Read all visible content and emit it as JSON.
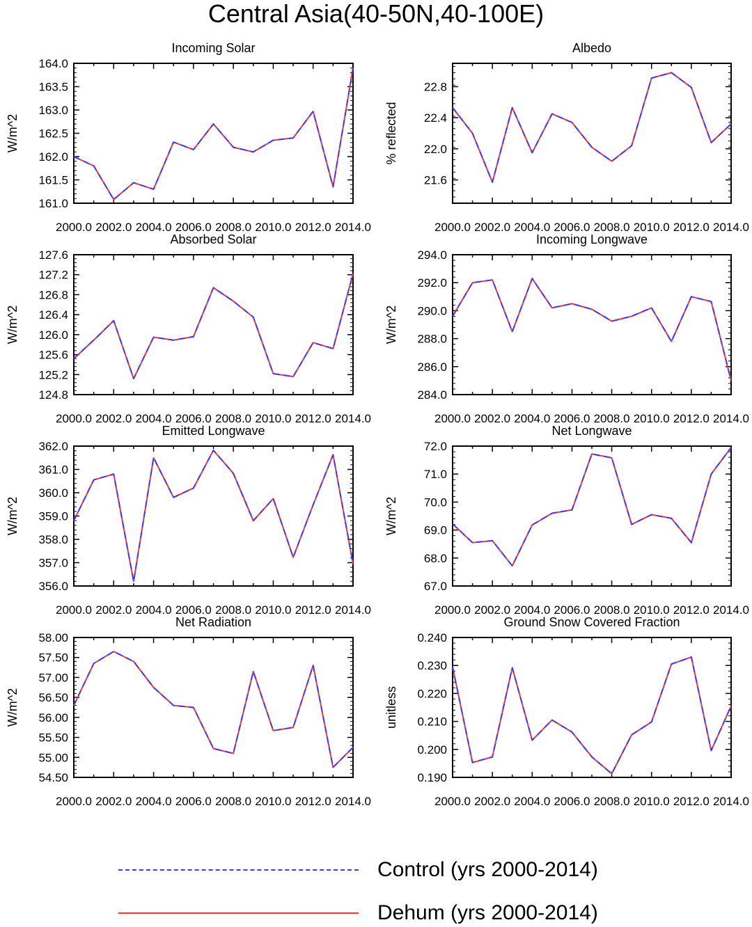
{
  "title": "Central Asia(40-50N,40-100E)",
  "colors": {
    "control": "#3b3bff",
    "dehum": "#ff3333"
  },
  "legend": {
    "control_label": "Control (yrs 2000-2014)",
    "dehum_label": "Dehum (yrs 2000-2014)"
  },
  "chart_data": [
    {
      "type": "line",
      "title": "Incoming Solar",
      "ylabel": "W/m^2",
      "xlabel": "",
      "x": [
        2000,
        2001,
        2002,
        2003,
        2004,
        2005,
        2006,
        2007,
        2008,
        2009,
        2010,
        2011,
        2012,
        2013,
        2014
      ],
      "xlim": [
        2000,
        2014
      ],
      "xticks": [
        "2000.0",
        "2002.0",
        "2004.0",
        "2006.0",
        "2008.0",
        "2010.0",
        "2012.0",
        "2014.0"
      ],
      "ylim": [
        161.0,
        164.0
      ],
      "yticks": [
        "161.0",
        "161.5",
        "162.0",
        "162.5",
        "163.0",
        "163.5",
        "164.0"
      ],
      "series": [
        {
          "name": "Control (yrs 2000-2014)",
          "values": [
            162.0,
            161.8,
            161.08,
            161.44,
            161.3,
            162.31,
            162.15,
            162.7,
            162.2,
            162.1,
            162.35,
            162.4,
            162.97,
            161.35,
            163.9
          ]
        },
        {
          "name": "Dehum (yrs 2000-2014)",
          "values": [
            162.0,
            161.8,
            161.08,
            161.44,
            161.3,
            162.31,
            162.15,
            162.7,
            162.2,
            162.1,
            162.35,
            162.4,
            162.97,
            161.35,
            163.9
          ]
        }
      ]
    },
    {
      "type": "line",
      "title": "Albedo",
      "ylabel": "% reflected",
      "xlabel": "",
      "x": [
        2000,
        2001,
        2002,
        2003,
        2004,
        2005,
        2006,
        2007,
        2008,
        2009,
        2010,
        2011,
        2012,
        2013,
        2014
      ],
      "xlim": [
        2000,
        2014
      ],
      "xticks": [
        "2000.0",
        "2002.0",
        "2004.0",
        "2006.0",
        "2008.0",
        "2010.0",
        "2012.0",
        "2014.0"
      ],
      "ylim": [
        21.3,
        23.1
      ],
      "yticks": [
        "21.6",
        "22.0",
        "22.4",
        "22.8"
      ],
      "series": [
        {
          "name": "Control (yrs 2000-2014)",
          "values": [
            22.53,
            22.2,
            21.57,
            22.53,
            21.95,
            22.45,
            22.34,
            22.02,
            21.84,
            22.04,
            22.91,
            22.98,
            22.79,
            22.08,
            22.32
          ]
        },
        {
          "name": "Dehum (yrs 2000-2014)",
          "values": [
            22.53,
            22.2,
            21.57,
            22.53,
            21.95,
            22.45,
            22.34,
            22.02,
            21.84,
            22.04,
            22.91,
            22.98,
            22.79,
            22.08,
            22.32
          ]
        }
      ]
    },
    {
      "type": "line",
      "title": "Absorbed Solar",
      "ylabel": "W/m^2",
      "xlabel": "",
      "x": [
        2000,
        2001,
        2002,
        2003,
        2004,
        2005,
        2006,
        2007,
        2008,
        2009,
        2010,
        2011,
        2012,
        2013,
        2014
      ],
      "xlim": [
        2000,
        2014
      ],
      "xticks": [
        "2000.0",
        "2002.0",
        "2004.0",
        "2006.0",
        "2008.0",
        "2010.0",
        "2012.0",
        "2014.0"
      ],
      "ylim": [
        124.8,
        127.6
      ],
      "yticks": [
        "124.8",
        "125.2",
        "125.6",
        "126.0",
        "126.4",
        "126.8",
        "127.2",
        "127.6"
      ],
      "series": [
        {
          "name": "Control (yrs 2000-2014)",
          "values": [
            125.52,
            125.89,
            126.28,
            125.12,
            125.95,
            125.89,
            125.96,
            126.94,
            126.67,
            126.35,
            125.22,
            125.16,
            125.84,
            125.72,
            127.22
          ]
        },
        {
          "name": "Dehum (yrs 2000-2014)",
          "values": [
            125.52,
            125.89,
            126.28,
            125.12,
            125.95,
            125.89,
            125.96,
            126.94,
            126.67,
            126.35,
            125.22,
            125.16,
            125.84,
            125.72,
            127.22
          ]
        }
      ]
    },
    {
      "type": "line",
      "title": "Incoming Longwave",
      "ylabel": "W/m^2",
      "xlabel": "",
      "x": [
        2000,
        2001,
        2002,
        2003,
        2004,
        2005,
        2006,
        2007,
        2008,
        2009,
        2010,
        2011,
        2012,
        2013,
        2014
      ],
      "xlim": [
        2000,
        2014
      ],
      "xticks": [
        "2000.0",
        "2002.0",
        "2004.0",
        "2006.0",
        "2008.0",
        "2010.0",
        "2012.0",
        "2014.0"
      ],
      "ylim": [
        284.0,
        294.0
      ],
      "yticks": [
        "284.0",
        "286.0",
        "288.0",
        "290.0",
        "292.0",
        "294.0"
      ],
      "series": [
        {
          "name": "Control (yrs 2000-2014)",
          "values": [
            289.6,
            292.0,
            292.2,
            288.5,
            292.3,
            290.2,
            290.5,
            290.1,
            289.25,
            289.6,
            290.2,
            287.8,
            291.0,
            290.65,
            285.0
          ]
        },
        {
          "name": "Dehum (yrs 2000-2014)",
          "values": [
            289.6,
            292.0,
            292.2,
            288.5,
            292.3,
            290.2,
            290.5,
            290.1,
            289.25,
            289.6,
            290.2,
            287.8,
            291.0,
            290.65,
            285.0
          ]
        }
      ]
    },
    {
      "type": "line",
      "title": "Emitted Longwave",
      "ylabel": "W/m^2",
      "xlabel": "",
      "x": [
        2000,
        2001,
        2002,
        2003,
        2004,
        2005,
        2006,
        2007,
        2008,
        2009,
        2010,
        2011,
        2012,
        2013,
        2014
      ],
      "xlim": [
        2000,
        2014
      ],
      "xticks": [
        "2000.0",
        "2002.0",
        "2004.0",
        "2006.0",
        "2008.0",
        "2010.0",
        "2012.0",
        "2014.0"
      ],
      "ylim": [
        356.0,
        362.0
      ],
      "yticks": [
        "356.0",
        "357.0",
        "358.0",
        "359.0",
        "360.0",
        "361.0",
        "362.0"
      ],
      "series": [
        {
          "name": "Control (yrs 2000-2014)",
          "values": [
            358.8,
            360.55,
            360.8,
            356.2,
            361.5,
            359.8,
            360.2,
            361.82,
            360.83,
            358.8,
            359.75,
            357.23,
            359.48,
            361.63,
            356.95
          ]
        },
        {
          "name": "Dehum (yrs 2000-2014)",
          "values": [
            358.8,
            360.55,
            360.8,
            356.2,
            361.5,
            359.8,
            360.2,
            361.82,
            360.83,
            358.8,
            359.75,
            357.23,
            359.48,
            361.63,
            356.95
          ]
        }
      ]
    },
    {
      "type": "line",
      "title": "Net Longwave",
      "ylabel": "W/m^2",
      "xlabel": "",
      "x": [
        2000,
        2001,
        2002,
        2003,
        2004,
        2005,
        2006,
        2007,
        2008,
        2009,
        2010,
        2011,
        2012,
        2013,
        2014
      ],
      "xlim": [
        2000,
        2014
      ],
      "xticks": [
        "2000.0",
        "2002.0",
        "2004.0",
        "2006.0",
        "2008.0",
        "2010.0",
        "2012.0",
        "2014.0"
      ],
      "ylim": [
        67.0,
        72.0
      ],
      "yticks": [
        "67.0",
        "68.0",
        "69.0",
        "70.0",
        "71.0",
        "72.0"
      ],
      "series": [
        {
          "name": "Control (yrs 2000-2014)",
          "values": [
            69.22,
            68.55,
            68.62,
            67.72,
            69.18,
            69.6,
            69.72,
            71.72,
            71.58,
            69.2,
            69.55,
            69.42,
            68.55,
            71.0,
            71.95
          ]
        },
        {
          "name": "Dehum (yrs 2000-2014)",
          "values": [
            69.22,
            68.55,
            68.62,
            67.72,
            69.18,
            69.6,
            69.72,
            71.72,
            71.58,
            69.2,
            69.55,
            69.42,
            68.55,
            71.0,
            71.95
          ]
        }
      ]
    },
    {
      "type": "line",
      "title": "Net Radiation",
      "ylabel": "W/m^2",
      "xlabel": "",
      "x": [
        2000,
        2001,
        2002,
        2003,
        2004,
        2005,
        2006,
        2007,
        2008,
        2009,
        2010,
        2011,
        2012,
        2013,
        2014
      ],
      "xlim": [
        2000,
        2014
      ],
      "xticks": [
        "2000.0",
        "2002.0",
        "2004.0",
        "2006.0",
        "2008.0",
        "2010.0",
        "2012.0",
        "2014.0"
      ],
      "ylim": [
        54.5,
        58.0
      ],
      "yticks": [
        "54.50",
        "55.00",
        "55.50",
        "56.00",
        "56.50",
        "57.00",
        "57.50",
        "58.00"
      ],
      "series": [
        {
          "name": "Control (yrs 2000-2014)",
          "values": [
            56.3,
            57.35,
            57.65,
            57.4,
            56.75,
            56.3,
            56.25,
            55.22,
            55.1,
            57.15,
            55.67,
            55.75,
            57.3,
            54.75,
            55.25
          ]
        },
        {
          "name": "Dehum (yrs 2000-2014)",
          "values": [
            56.3,
            57.35,
            57.65,
            57.4,
            56.75,
            56.3,
            56.25,
            55.22,
            55.1,
            57.15,
            55.67,
            55.75,
            57.3,
            54.75,
            55.25
          ]
        }
      ]
    },
    {
      "type": "line",
      "title": "Ground Snow Covered Fraction",
      "ylabel": "unitless",
      "xlabel": "",
      "x": [
        2000,
        2001,
        2002,
        2003,
        2004,
        2005,
        2006,
        2007,
        2008,
        2009,
        2010,
        2011,
        2012,
        2013,
        2014
      ],
      "xlim": [
        2000,
        2014
      ],
      "xticks": [
        "2000.0",
        "2002.0",
        "2004.0",
        "2006.0",
        "2008.0",
        "2010.0",
        "2012.0",
        "2014.0"
      ],
      "ylim": [
        0.19,
        0.24
      ],
      "yticks": [
        "0.190",
        "0.200",
        "0.210",
        "0.220",
        "0.230",
        "0.240"
      ],
      "series": [
        {
          "name": "Control (yrs 2000-2014)",
          "values": [
            0.2295,
            0.1953,
            0.1973,
            0.2292,
            0.2033,
            0.2105,
            0.2062,
            0.1973,
            0.1913,
            0.2052,
            0.2098,
            0.2305,
            0.233,
            0.1996,
            0.2155
          ]
        },
        {
          "name": "Dehum (yrs 2000-2014)",
          "values": [
            0.2295,
            0.1953,
            0.1973,
            0.2292,
            0.2033,
            0.2105,
            0.2062,
            0.1973,
            0.1913,
            0.2052,
            0.2098,
            0.2305,
            0.233,
            0.1996,
            0.2155
          ]
        }
      ]
    }
  ]
}
